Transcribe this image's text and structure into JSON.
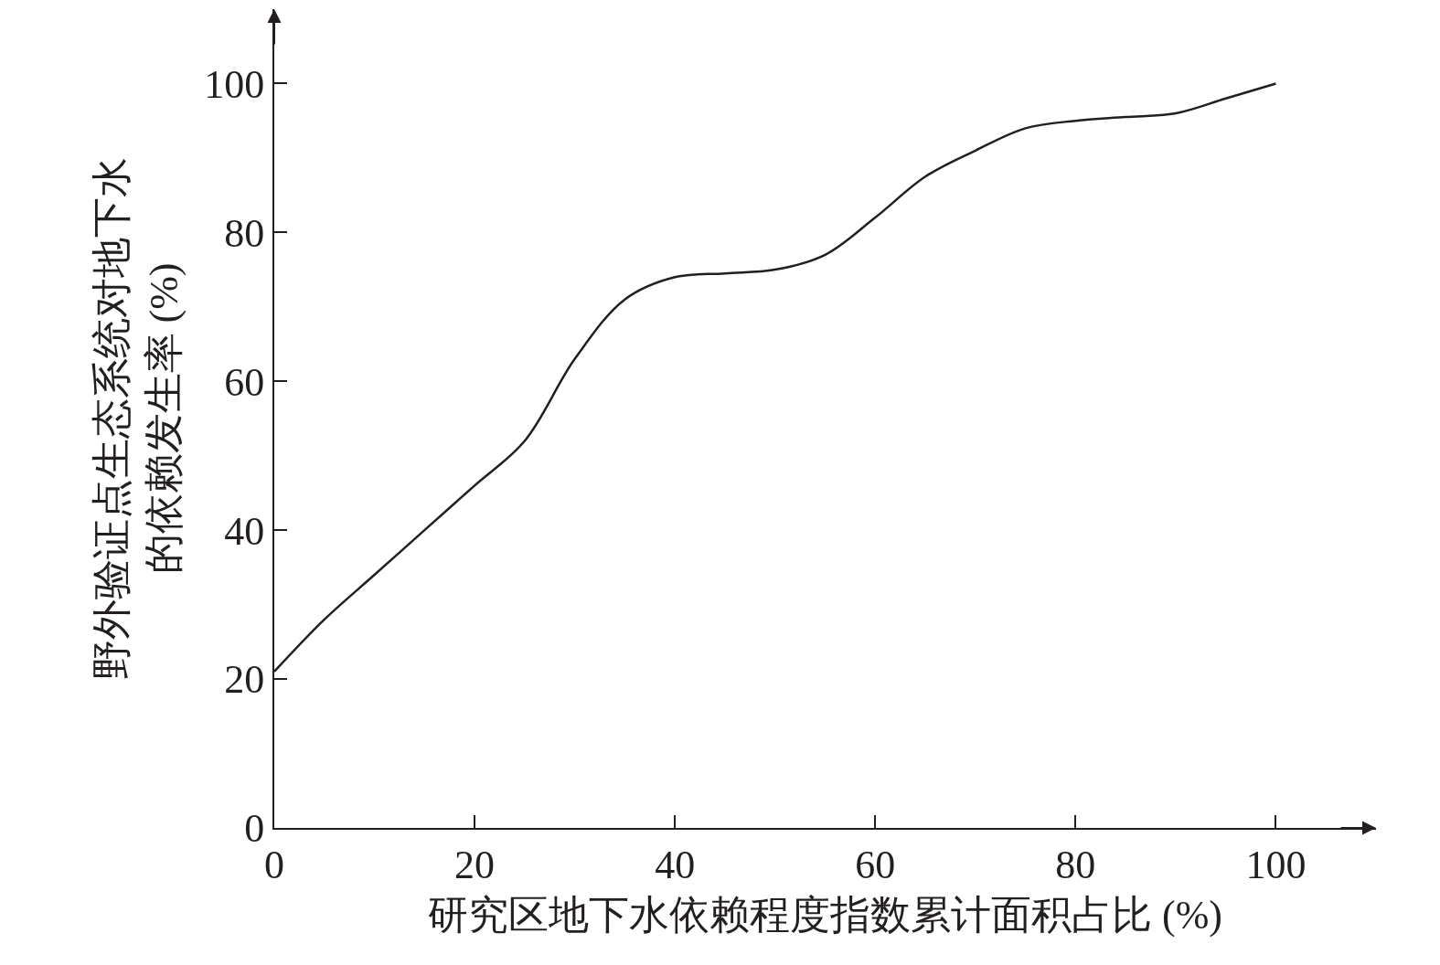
{
  "chart_data": {
    "type": "line",
    "xlabel": "研究区地下水依赖程度指数累计面积占比 (%)",
    "ylabel": "野外验证点生态系统对地下水的依赖发生率 (%)",
    "x": [
      0,
      5,
      10,
      15,
      20,
      25,
      30,
      35,
      40,
      45,
      50,
      55,
      60,
      65,
      70,
      75,
      80,
      85,
      90,
      95,
      100
    ],
    "series": [
      {
        "color": "#231f20",
        "values": [
          21,
          28,
          34,
          40,
          46,
          52,
          63,
          71,
          74,
          74.5,
          75,
          77,
          82,
          87.5,
          91,
          94,
          95,
          95.5,
          96,
          98,
          100
        ]
      }
    ],
    "xlim": [
      0,
      110
    ],
    "ylim": [
      0,
      110
    ],
    "xticks": [
      0,
      20,
      40,
      60,
      80,
      100
    ],
    "yticks": [
      0,
      20,
      40,
      60,
      80,
      100
    ],
    "legend": false,
    "marker": "none",
    "line_style": "solid"
  }
}
